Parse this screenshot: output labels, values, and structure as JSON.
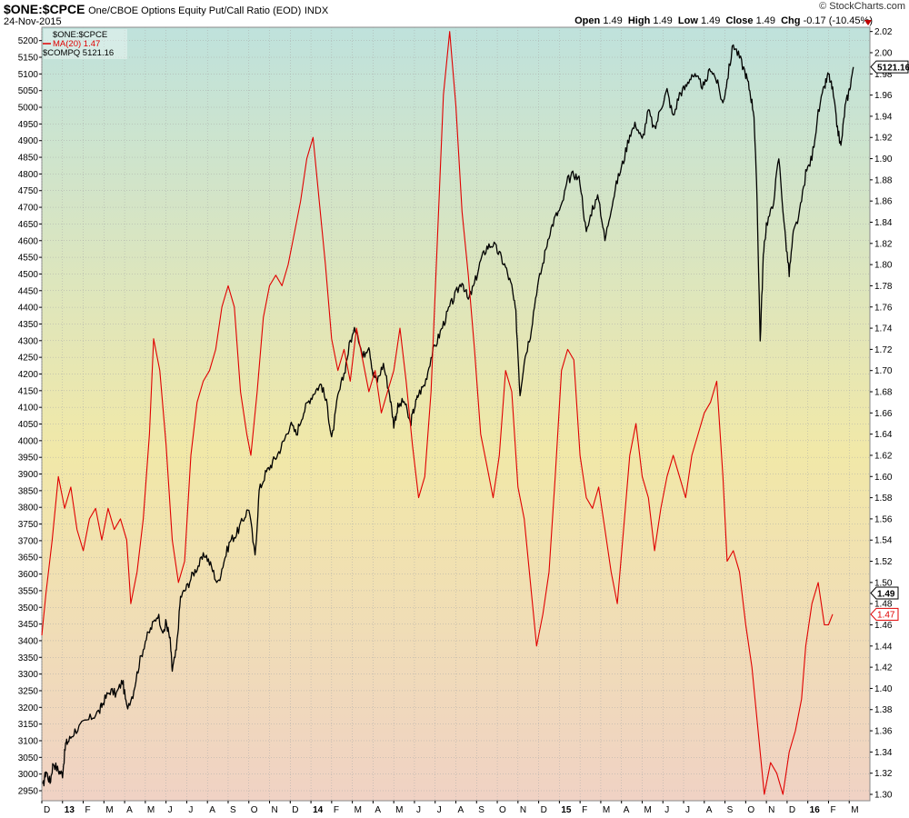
{
  "header": {
    "symbol": "$ONE:$CPCE",
    "description": "One/CBOE Options Equity Put/Call Ratio (EOD)",
    "exchange": "INDX",
    "date": "24-Nov-2015",
    "brand": "© StockCharts.com",
    "open_label": "Open",
    "open": "1.49",
    "high_label": "High",
    "high": "1.49",
    "low_label": "Low",
    "low": "1.49",
    "close_label": "Close",
    "close": "1.49",
    "chg_label": "Chg",
    "chg": "-0.17 (-10.45%)"
  },
  "legend": {
    "main": "$ONE:$CPCE",
    "ma": "MA(20) 1.47",
    "compq": "$COMPQ 5121.16"
  },
  "badges": {
    "compq_last": "5121.16",
    "ratio_last": "1.49",
    "ma_last": "1.47"
  },
  "chart_data": {
    "type": "line",
    "left_axis": {
      "label": "",
      "ticks": [
        2950,
        3000,
        3050,
        3100,
        3150,
        3200,
        3250,
        3300,
        3350,
        3400,
        3450,
        3500,
        3550,
        3600,
        3650,
        3700,
        3750,
        3800,
        3850,
        3900,
        3950,
        4000,
        4050,
        4100,
        4150,
        4200,
        4250,
        4300,
        4350,
        4400,
        4450,
        4500,
        4550,
        4600,
        4650,
        4700,
        4750,
        4800,
        4850,
        4900,
        4950,
        5000,
        5050,
        5100,
        5150,
        5200
      ],
      "range": [
        2920,
        5240
      ]
    },
    "right_axis": {
      "label": "",
      "ticks": [
        "1.30",
        "1.32",
        "1.34",
        "1.36",
        "1.38",
        "1.40",
        "1.42",
        "1.44",
        "1.46",
        "1.48",
        "1.50",
        "1.52",
        "1.54",
        "1.56",
        "1.58",
        "1.60",
        "1.62",
        "1.64",
        "1.66",
        "1.68",
        "1.70",
        "1.72",
        "1.74",
        "1.76",
        "1.78",
        "1.80",
        "1.82",
        "1.84",
        "1.86",
        "1.88",
        "1.90",
        "1.92",
        "1.94",
        "1.96",
        "1.98",
        "2.00",
        "2.02"
      ],
      "range": [
        1.294,
        2.024
      ]
    },
    "x_axis": {
      "ticks": [
        "D",
        "13",
        "F",
        "M",
        "A",
        "M",
        "J",
        "J",
        "A",
        "S",
        "O",
        "N",
        "D",
        "14",
        "F",
        "M",
        "A",
        "M",
        "J",
        "J",
        "A",
        "S",
        "O",
        "N",
        "D",
        "15",
        "F",
        "M",
        "A",
        "M",
        "J",
        "J",
        "A",
        "S",
        "O",
        "N",
        "D",
        "16",
        "F",
        "M"
      ],
      "bold": [
        "13",
        "14",
        "15",
        "16"
      ],
      "range": [
        0,
        40
      ]
    },
    "series": [
      {
        "name": "$COMPQ",
        "axis": "left",
        "color": "#000000",
        "points": [
          [
            0.05,
            2960
          ],
          [
            0.2,
            3010
          ],
          [
            0.4,
            2975
          ],
          [
            0.55,
            3035
          ],
          [
            0.8,
            3010
          ],
          [
            1.0,
            3000
          ],
          [
            1.15,
            3090
          ],
          [
            1.3,
            3100
          ],
          [
            1.6,
            3130
          ],
          [
            2.0,
            3150
          ],
          [
            2.4,
            3170
          ],
          [
            2.8,
            3190
          ],
          [
            3.0,
            3220
          ],
          [
            3.3,
            3250
          ],
          [
            3.6,
            3240
          ],
          [
            3.9,
            3280
          ],
          [
            4.1,
            3200
          ],
          [
            4.4,
            3240
          ],
          [
            4.7,
            3330
          ],
          [
            5.0,
            3400
          ],
          [
            5.3,
            3440
          ],
          [
            5.6,
            3480
          ],
          [
            5.9,
            3420
          ],
          [
            6.0,
            3460
          ],
          [
            6.2,
            3400
          ],
          [
            6.3,
            3310
          ],
          [
            6.5,
            3370
          ],
          [
            6.7,
            3530
          ],
          [
            7.0,
            3560
          ],
          [
            7.3,
            3600
          ],
          [
            7.6,
            3630
          ],
          [
            7.9,
            3660
          ],
          [
            8.2,
            3620
          ],
          [
            8.5,
            3570
          ],
          [
            8.8,
            3640
          ],
          [
            9.1,
            3700
          ],
          [
            9.4,
            3720
          ],
          [
            9.7,
            3760
          ],
          [
            10.0,
            3800
          ],
          [
            10.3,
            3650
          ],
          [
            10.5,
            3850
          ],
          [
            10.8,
            3900
          ],
          [
            11.1,
            3930
          ],
          [
            11.4,
            3960
          ],
          [
            11.7,
            4000
          ],
          [
            12.0,
            4050
          ],
          [
            12.3,
            4020
          ],
          [
            12.6,
            4080
          ],
          [
            12.9,
            4120
          ],
          [
            13.2,
            4150
          ],
          [
            13.5,
            4170
          ],
          [
            13.8,
            4100
          ],
          [
            14.0,
            4000
          ],
          [
            14.3,
            4130
          ],
          [
            14.6,
            4200
          ],
          [
            14.9,
            4300
          ],
          [
            15.2,
            4340
          ],
          [
            15.5,
            4250
          ],
          [
            15.8,
            4290
          ],
          [
            16.0,
            4200
          ],
          [
            16.2,
            4180
          ],
          [
            16.5,
            4230
          ],
          [
            16.8,
            4140
          ],
          [
            17.0,
            4050
          ],
          [
            17.2,
            4100
          ],
          [
            17.5,
            4120
          ],
          [
            17.8,
            4050
          ],
          [
            18.0,
            4100
          ],
          [
            18.2,
            4140
          ],
          [
            18.5,
            4170
          ],
          [
            18.8,
            4250
          ],
          [
            19.1,
            4300
          ],
          [
            19.4,
            4350
          ],
          [
            19.7,
            4400
          ],
          [
            20.0,
            4440
          ],
          [
            20.3,
            4480
          ],
          [
            20.6,
            4420
          ],
          [
            20.9,
            4470
          ],
          [
            21.2,
            4540
          ],
          [
            21.5,
            4580
          ],
          [
            21.8,
            4590
          ],
          [
            22.1,
            4560
          ],
          [
            22.4,
            4520
          ],
          [
            22.7,
            4460
          ],
          [
            22.9,
            4380
          ],
          [
            23.1,
            4140
          ],
          [
            23.3,
            4240
          ],
          [
            23.6,
            4320
          ],
          [
            23.9,
            4450
          ],
          [
            24.2,
            4530
          ],
          [
            24.5,
            4620
          ],
          [
            24.8,
            4670
          ],
          [
            25.1,
            4700
          ],
          [
            25.4,
            4780
          ],
          [
            25.7,
            4800
          ],
          [
            26.0,
            4780
          ],
          [
            26.3,
            4620
          ],
          [
            26.6,
            4700
          ],
          [
            26.9,
            4730
          ],
          [
            27.2,
            4600
          ],
          [
            27.5,
            4700
          ],
          [
            27.8,
            4780
          ],
          [
            28.1,
            4840
          ],
          [
            28.4,
            4920
          ],
          [
            28.7,
            4950
          ],
          [
            29.0,
            4900
          ],
          [
            29.3,
            4990
          ],
          [
            29.6,
            4930
          ],
          [
            29.9,
            5000
          ],
          [
            30.2,
            5050
          ],
          [
            30.5,
            4970
          ],
          [
            30.8,
            5040
          ],
          [
            31.1,
            5060
          ],
          [
            31.4,
            5100
          ],
          [
            31.7,
            5080
          ],
          [
            32.0,
            5060
          ],
          [
            32.3,
            5120
          ],
          [
            32.6,
            5080
          ],
          [
            32.9,
            5010
          ],
          [
            33.1,
            5080
          ],
          [
            33.4,
            5190
          ],
          [
            33.7,
            5150
          ],
          [
            34.0,
            5100
          ],
          [
            34.2,
            5050
          ],
          [
            34.4,
            4980
          ],
          [
            34.55,
            4720
          ],
          [
            34.7,
            4300
          ],
          [
            34.85,
            4550
          ],
          [
            35.0,
            4650
          ],
          [
            35.3,
            4700
          ],
          [
            35.6,
            4850
          ],
          [
            35.9,
            4620
          ],
          [
            36.1,
            4500
          ],
          [
            36.3,
            4620
          ],
          [
            36.6,
            4680
          ],
          [
            36.9,
            4800
          ],
          [
            37.2,
            4850
          ],
          [
            37.5,
            4980
          ],
          [
            37.8,
            5060
          ],
          [
            38.0,
            5100
          ],
          [
            38.2,
            5050
          ],
          [
            38.4,
            4950
          ],
          [
            38.6,
            4880
          ],
          [
            38.8,
            5000
          ],
          [
            39.0,
            5050
          ],
          [
            39.2,
            5121
          ]
        ]
      },
      {
        "name": "MA(20)",
        "axis": "right",
        "color": "#e00000",
        "points": [
          [
            0.0,
            1.45
          ],
          [
            0.2,
            1.49
          ],
          [
            0.5,
            1.54
          ],
          [
            0.8,
            1.6
          ],
          [
            1.1,
            1.57
          ],
          [
            1.4,
            1.59
          ],
          [
            1.7,
            1.55
          ],
          [
            2.0,
            1.53
          ],
          [
            2.3,
            1.56
          ],
          [
            2.6,
            1.57
          ],
          [
            2.9,
            1.54
          ],
          [
            3.2,
            1.57
          ],
          [
            3.5,
            1.55
          ],
          [
            3.8,
            1.56
          ],
          [
            4.1,
            1.54
          ],
          [
            4.3,
            1.48
          ],
          [
            4.6,
            1.51
          ],
          [
            4.9,
            1.56
          ],
          [
            5.2,
            1.64
          ],
          [
            5.4,
            1.73
          ],
          [
            5.7,
            1.7
          ],
          [
            6.0,
            1.63
          ],
          [
            6.3,
            1.54
          ],
          [
            6.6,
            1.5
          ],
          [
            6.9,
            1.52
          ],
          [
            7.2,
            1.62
          ],
          [
            7.5,
            1.67
          ],
          [
            7.8,
            1.69
          ],
          [
            8.1,
            1.7
          ],
          [
            8.4,
            1.72
          ],
          [
            8.7,
            1.76
          ],
          [
            9.0,
            1.78
          ],
          [
            9.3,
            1.76
          ],
          [
            9.6,
            1.68
          ],
          [
            9.9,
            1.64
          ],
          [
            10.1,
            1.62
          ],
          [
            10.4,
            1.68
          ],
          [
            10.7,
            1.75
          ],
          [
            11.0,
            1.78
          ],
          [
            11.3,
            1.79
          ],
          [
            11.6,
            1.78
          ],
          [
            11.9,
            1.8
          ],
          [
            12.2,
            1.83
          ],
          [
            12.5,
            1.86
          ],
          [
            12.8,
            1.9
          ],
          [
            13.1,
            1.92
          ],
          [
            13.4,
            1.86
          ],
          [
            13.7,
            1.8
          ],
          [
            14.0,
            1.73
          ],
          [
            14.3,
            1.7
          ],
          [
            14.6,
            1.72
          ],
          [
            14.9,
            1.69
          ],
          [
            15.2,
            1.74
          ],
          [
            15.5,
            1.71
          ],
          [
            15.8,
            1.68
          ],
          [
            16.1,
            1.7
          ],
          [
            16.4,
            1.66
          ],
          [
            16.7,
            1.68
          ],
          [
            17.0,
            1.7
          ],
          [
            17.3,
            1.74
          ],
          [
            17.6,
            1.69
          ],
          [
            17.9,
            1.63
          ],
          [
            18.2,
            1.58
          ],
          [
            18.5,
            1.6
          ],
          [
            18.8,
            1.68
          ],
          [
            19.1,
            1.82
          ],
          [
            19.4,
            1.96
          ],
          [
            19.7,
            2.02
          ],
          [
            20.0,
            1.95
          ],
          [
            20.3,
            1.85
          ],
          [
            20.6,
            1.79
          ],
          [
            20.9,
            1.72
          ],
          [
            21.2,
            1.64
          ],
          [
            21.5,
            1.61
          ],
          [
            21.8,
            1.58
          ],
          [
            22.1,
            1.62
          ],
          [
            22.4,
            1.7
          ],
          [
            22.7,
            1.68
          ],
          [
            23.0,
            1.59
          ],
          [
            23.3,
            1.56
          ],
          [
            23.6,
            1.5
          ],
          [
            23.9,
            1.44
          ],
          [
            24.2,
            1.47
          ],
          [
            24.5,
            1.51
          ],
          [
            24.8,
            1.6
          ],
          [
            25.1,
            1.7
          ],
          [
            25.4,
            1.72
          ],
          [
            25.7,
            1.71
          ],
          [
            26.0,
            1.62
          ],
          [
            26.3,
            1.58
          ],
          [
            26.6,
            1.57
          ],
          [
            26.9,
            1.59
          ],
          [
            27.2,
            1.55
          ],
          [
            27.5,
            1.51
          ],
          [
            27.8,
            1.48
          ],
          [
            28.1,
            1.55
          ],
          [
            28.4,
            1.62
          ],
          [
            28.7,
            1.65
          ],
          [
            29.0,
            1.6
          ],
          [
            29.3,
            1.58
          ],
          [
            29.6,
            1.53
          ],
          [
            29.9,
            1.57
          ],
          [
            30.2,
            1.6
          ],
          [
            30.5,
            1.62
          ],
          [
            30.8,
            1.6
          ],
          [
            31.1,
            1.58
          ],
          [
            31.4,
            1.62
          ],
          [
            31.7,
            1.64
          ],
          [
            32.0,
            1.66
          ],
          [
            32.3,
            1.67
          ],
          [
            32.6,
            1.69
          ],
          [
            32.9,
            1.6
          ],
          [
            33.1,
            1.52
          ],
          [
            33.4,
            1.53
          ],
          [
            33.7,
            1.51
          ],
          [
            34.0,
            1.46
          ],
          [
            34.3,
            1.42
          ],
          [
            34.6,
            1.36
          ],
          [
            34.9,
            1.3
          ],
          [
            35.2,
            1.33
          ],
          [
            35.5,
            1.32
          ],
          [
            35.8,
            1.3
          ],
          [
            36.1,
            1.34
          ],
          [
            36.4,
            1.36
          ],
          [
            36.7,
            1.39
          ],
          [
            36.9,
            1.44
          ],
          [
            37.2,
            1.48
          ],
          [
            37.5,
            1.5
          ],
          [
            37.8,
            1.46
          ],
          [
            38.0,
            1.46
          ],
          [
            38.2,
            1.47
          ]
        ]
      }
    ],
    "background_gradient": [
      "#bfe2dc",
      "#f1e8a8",
      "#f0d2c4"
    ]
  }
}
